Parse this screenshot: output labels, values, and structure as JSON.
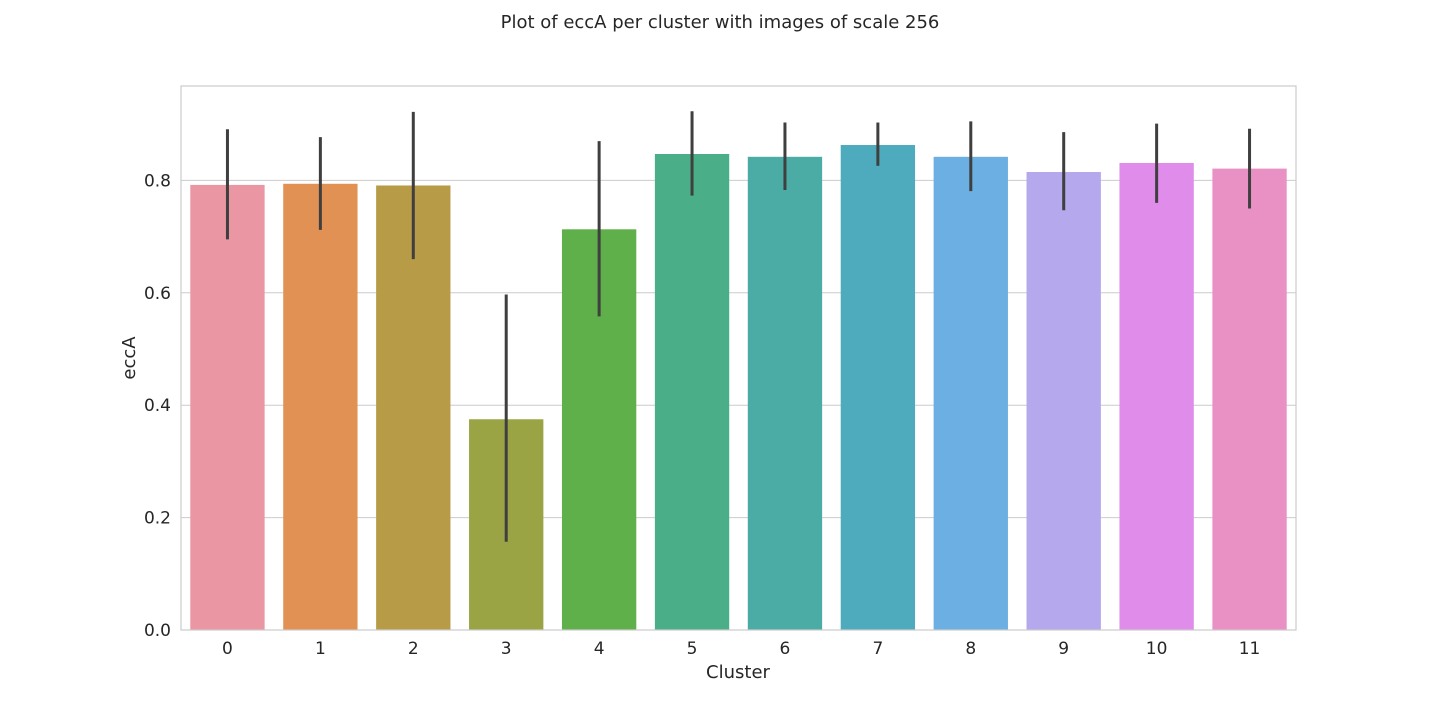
{
  "chart_data": {
    "type": "bar",
    "title": "Plot of eccA per cluster with images of scale 256",
    "xlabel": "Cluster",
    "ylabel": "eccA",
    "categories": [
      "0",
      "1",
      "2",
      "3",
      "4",
      "5",
      "6",
      "7",
      "8",
      "9",
      "10",
      "11"
    ],
    "values": [
      0.792,
      0.794,
      0.791,
      0.375,
      0.713,
      0.847,
      0.842,
      0.863,
      0.842,
      0.815,
      0.831,
      0.821
    ],
    "error_low": [
      0.695,
      0.712,
      0.66,
      0.157,
      0.558,
      0.773,
      0.783,
      0.826,
      0.781,
      0.747,
      0.76,
      0.75
    ],
    "error_high": [
      0.891,
      0.877,
      0.922,
      0.597,
      0.87,
      0.923,
      0.903,
      0.903,
      0.905,
      0.886,
      0.901,
      0.892
    ],
    "ylim": [
      0,
      0.968
    ],
    "yticks": [
      0.0,
      0.2,
      0.4,
      0.6,
      0.8
    ],
    "ytick_labels": [
      "0.0",
      "0.2",
      "0.4",
      "0.6",
      "0.8"
    ],
    "grid": "horizontal",
    "legend": "none",
    "colors": [
      "#ea96a3",
      "#e19153",
      "#b89b47",
      "#9aa445",
      "#5faf4a",
      "#4aaf88",
      "#4aaca5",
      "#4eabbd",
      "#6cafe2",
      "#b5a8ec",
      "#df8ceb",
      "#e991c5"
    ],
    "error_color": "#3f3f3f",
    "grid_color": "#cccccc",
    "frame_color": "#cccccc"
  }
}
